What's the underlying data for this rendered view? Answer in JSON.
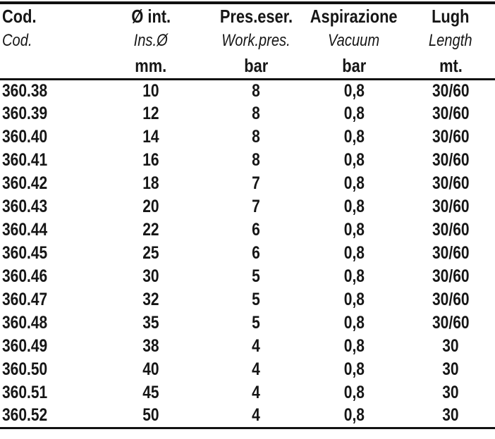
{
  "theme": {
    "text": "#161616",
    "bg": "#ffffff",
    "border": "#111111"
  },
  "table": {
    "columns": [
      {
        "id": "cod",
        "label_it": "Cod.",
        "label_en": "Cod.",
        "unit": ""
      },
      {
        "id": "inner_diameter",
        "label_it": "Ø int.",
        "label_en": "Ins.Ø",
        "unit": "mm."
      },
      {
        "id": "working_pressure",
        "label_it": "Pres.eser.",
        "label_en": "Work.pres.",
        "unit": "bar"
      },
      {
        "id": "vacuum",
        "label_it": "Aspirazione",
        "label_en": "Vacuum",
        "unit": "bar"
      },
      {
        "id": "length",
        "label_it": "Lugh",
        "label_en": "Length",
        "unit": "mt."
      }
    ],
    "rows": [
      [
        "360.38",
        "10",
        "8",
        "0,8",
        "30/60"
      ],
      [
        "360.39",
        "12",
        "8",
        "0,8",
        "30/60"
      ],
      [
        "360.40",
        "14",
        "8",
        "0,8",
        "30/60"
      ],
      [
        "360.41",
        "16",
        "8",
        "0,8",
        "30/60"
      ],
      [
        "360.42",
        "18",
        "7",
        "0,8",
        "30/60"
      ],
      [
        "360.43",
        "20",
        "7",
        "0,8",
        "30/60"
      ],
      [
        "360.44",
        "22",
        "6",
        "0,8",
        "30/60"
      ],
      [
        "360.45",
        "25",
        "6",
        "0,8",
        "30/60"
      ],
      [
        "360.46",
        "30",
        "5",
        "0,8",
        "30/60"
      ],
      [
        "360.47",
        "32",
        "5",
        "0,8",
        "30/60"
      ],
      [
        "360.48",
        "35",
        "5",
        "0,8",
        "30/60"
      ],
      [
        "360.49",
        "38",
        "4",
        "0,8",
        "30"
      ],
      [
        "360.50",
        "40",
        "4",
        "0,8",
        "30"
      ],
      [
        "360.51",
        "45",
        "4",
        "0,8",
        "30"
      ],
      [
        "360.52",
        "50",
        "4",
        "0,8",
        "30"
      ]
    ]
  },
  "chart_data": {
    "type": "table",
    "title": "",
    "columns": [
      "Cod. / Cod.",
      "Ø int. / Ins.Ø (mm.)",
      "Pres.eser. / Work.pres. (bar)",
      "Aspirazione / Vacuum (bar)",
      "Lugh / Length (mt.)"
    ],
    "rows": [
      [
        "360.38",
        10,
        8,
        0.8,
        "30/60"
      ],
      [
        "360.39",
        12,
        8,
        0.8,
        "30/60"
      ],
      [
        "360.40",
        14,
        8,
        0.8,
        "30/60"
      ],
      [
        "360.41",
        16,
        8,
        0.8,
        "30/60"
      ],
      [
        "360.42",
        18,
        7,
        0.8,
        "30/60"
      ],
      [
        "360.43",
        20,
        7,
        0.8,
        "30/60"
      ],
      [
        "360.44",
        22,
        6,
        0.8,
        "30/60"
      ],
      [
        "360.45",
        25,
        6,
        0.8,
        "30/60"
      ],
      [
        "360.46",
        30,
        5,
        0.8,
        "30/60"
      ],
      [
        "360.47",
        32,
        5,
        0.8,
        "30/60"
      ],
      [
        "360.48",
        35,
        5,
        0.8,
        "30/60"
      ],
      [
        "360.49",
        38,
        4,
        0.8,
        "30"
      ],
      [
        "360.50",
        40,
        4,
        0.8,
        "30"
      ],
      [
        "360.51",
        45,
        4,
        0.8,
        "30"
      ],
      [
        "360.52",
        50,
        4,
        0.8,
        "30"
      ]
    ]
  }
}
